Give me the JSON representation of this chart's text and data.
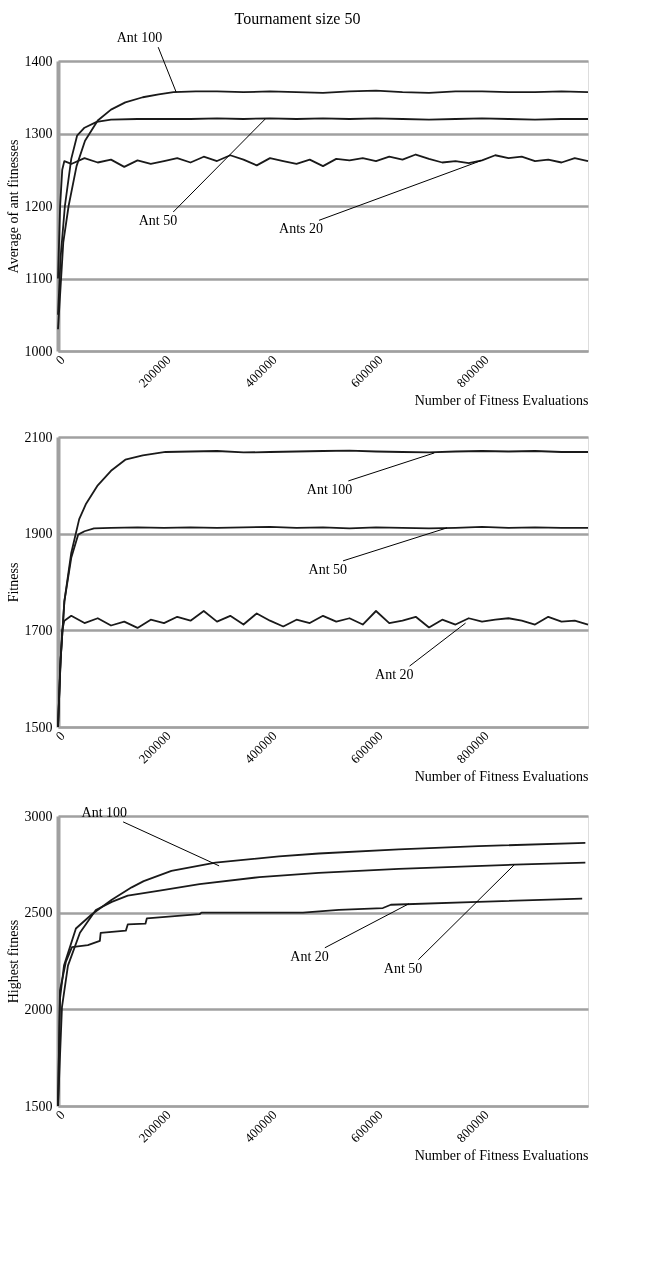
{
  "chart_data": [
    {
      "type": "line",
      "title": "Tournament size 50",
      "xlabel": "Number of Fitness Evaluations",
      "ylabel": "Average of ant fitnesses",
      "xlim": [
        0,
        1000000
      ],
      "xticks": [
        0,
        200000,
        400000,
        600000,
        800000
      ],
      "ylim": [
        1000,
        1400
      ],
      "yticks": [
        1000,
        1100,
        1200,
        1300,
        1400
      ],
      "grid": "y",
      "legend": false,
      "marker": "none",
      "line_style": "solid",
      "series": [
        {
          "color": "#1a1a1a",
          "x": [
            0,
            5000,
            10000,
            20000,
            35000,
            51000,
            75000,
            100000,
            127000,
            160000,
            190000,
            218000,
            260000,
            300000,
            350000,
            400000,
            450000,
            500000,
            550000,
            600000,
            650000,
            700000,
            750000,
            800000,
            850000,
            900000,
            950000,
            1000000
          ],
          "values": [
            1030,
            1090,
            1150,
            1200,
            1255,
            1290,
            1318,
            1333,
            1343,
            1350,
            1354,
            1357,
            1358,
            1358,
            1357,
            1358,
            1357,
            1356,
            1358,
            1359,
            1357,
            1356,
            1358,
            1358,
            1357,
            1357,
            1358,
            1357
          ]
        },
        {
          "color": "#1a1a1a",
          "x": [
            0,
            5000,
            13000,
            25000,
            36000,
            50000,
            73000,
            100000,
            150000,
            200000,
            250000,
            300000,
            350000,
            400000,
            450000,
            500000,
            550000,
            600000,
            650000,
            700000,
            750000,
            800000,
            850000,
            900000,
            950000,
            1000000
          ],
          "values": [
            1050,
            1130,
            1200,
            1265,
            1297,
            1308,
            1316,
            1319,
            1320,
            1320,
            1320,
            1321,
            1320,
            1321,
            1320,
            1321,
            1320,
            1321,
            1320,
            1319,
            1320,
            1321,
            1320,
            1319,
            1320,
            1320
          ]
        },
        {
          "color": "#1a1a1a",
          "x": [
            0,
            4000,
            8000,
            12000,
            25000,
            50000,
            75000,
            100000,
            125000,
            150000,
            175000,
            200000,
            225000,
            250000,
            275000,
            300000,
            325000,
            350000,
            375000,
            400000,
            425000,
            450000,
            475000,
            500000,
            525000,
            550000,
            575000,
            600000,
            625000,
            650000,
            675000,
            700000,
            725000,
            750000,
            775000,
            800000,
            825000,
            850000,
            875000,
            900000,
            925000,
            950000,
            975000,
            1000000
          ],
          "values": [
            1100,
            1200,
            1250,
            1262,
            1258,
            1266,
            1260,
            1264,
            1254,
            1263,
            1258,
            1262,
            1266,
            1260,
            1268,
            1262,
            1270,
            1264,
            1256,
            1266,
            1262,
            1258,
            1264,
            1255,
            1265,
            1263,
            1266,
            1262,
            1268,
            1264,
            1271,
            1265,
            1260,
            1262,
            1259,
            1263,
            1270,
            1266,
            1268,
            1262,
            1264,
            1260,
            1266,
            1262
          ]
        }
      ],
      "annotations": [
        {
          "text": "Ant 100",
          "x": 223000,
          "y": 1357
        },
        {
          "text": "Ant 50",
          "x": 391000,
          "y": 1320
        },
        {
          "text": "Ants 20",
          "x": 800000,
          "y": 1263
        }
      ]
    },
    {
      "type": "line",
      "xlabel": "Number of Fitness Evaluations",
      "ylabel": "Fitness",
      "xlim": [
        0,
        1000000
      ],
      "xticks": [
        0,
        200000,
        400000,
        600000,
        800000
      ],
      "ylim": [
        1500,
        2100
      ],
      "yticks": [
        1500,
        1700,
        1900,
        2100
      ],
      "grid": "y",
      "legend": false,
      "marker": "none",
      "line_style": "solid",
      "series": [
        {
          "color": "#1a1a1a",
          "x": [
            0,
            5000,
            12000,
            25000,
            40000,
            53000,
            75000,
            100000,
            127000,
            160000,
            203000,
            250000,
            300000,
            350000,
            400000,
            450000,
            500000,
            550000,
            600000,
            650000,
            700000,
            750000,
            800000,
            850000,
            900000,
            950000,
            1000000
          ],
          "values": [
            1500,
            1640,
            1760,
            1860,
            1930,
            1962,
            2000,
            2030,
            2053,
            2062,
            2069,
            2070,
            2071,
            2068,
            2069,
            2070,
            2071,
            2072,
            2070,
            2069,
            2068,
            2070,
            2071,
            2070,
            2071,
            2069,
            2069
          ]
        },
        {
          "color": "#1a1a1a",
          "x": [
            0,
            5000,
            12000,
            25000,
            38000,
            50000,
            68000,
            100000,
            150000,
            200000,
            250000,
            300000,
            350000,
            400000,
            450000,
            500000,
            550000,
            600000,
            650000,
            700000,
            750000,
            800000,
            850000,
            900000,
            950000,
            1000000
          ],
          "values": [
            1500,
            1640,
            1760,
            1850,
            1898,
            1905,
            1911,
            1912,
            1913,
            1912,
            1913,
            1912,
            1913,
            1914,
            1912,
            1913,
            1911,
            1913,
            1912,
            1911,
            1912,
            1914,
            1912,
            1913,
            1912,
            1912
          ]
        },
        {
          "color": "#1a1a1a",
          "x": [
            0,
            4000,
            8000,
            12000,
            25000,
            50000,
            75000,
            100000,
            125000,
            150000,
            175000,
            200000,
            225000,
            250000,
            275000,
            300000,
            325000,
            350000,
            375000,
            400000,
            425000,
            450000,
            475000,
            500000,
            525000,
            550000,
            575000,
            600000,
            625000,
            650000,
            675000,
            700000,
            725000,
            750000,
            775000,
            800000,
            825000,
            850000,
            875000,
            900000,
            925000,
            950000,
            975000,
            1000000
          ],
          "values": [
            1500,
            1620,
            1700,
            1720,
            1730,
            1715,
            1725,
            1710,
            1718,
            1705,
            1722,
            1715,
            1728,
            1720,
            1740,
            1718,
            1730,
            1712,
            1735,
            1720,
            1708,
            1722,
            1715,
            1730,
            1718,
            1725,
            1712,
            1740,
            1715,
            1720,
            1728,
            1706,
            1722,
            1712,
            1725,
            1718,
            1722,
            1725,
            1720,
            1712,
            1728,
            1718,
            1720,
            1712
          ]
        }
      ],
      "annotations": [
        {
          "text": "Ant 100",
          "x": 710000,
          "y": 2067
        },
        {
          "text": "Ant 50",
          "x": 734000,
          "y": 1912
        },
        {
          "text": "Ant 20",
          "x": 769000,
          "y": 1715
        }
      ]
    },
    {
      "type": "line",
      "xlabel": "Number of Fitness Evaluations",
      "ylabel": "Highest fitness",
      "xlim": [
        0,
        1000000
      ],
      "xticks": [
        0,
        200000,
        400000,
        600000,
        800000
      ],
      "ylim": [
        1500,
        3000
      ],
      "yticks": [
        1500,
        2000,
        2500,
        3000
      ],
      "grid": "y",
      "legend": false,
      "marker": "none",
      "line_style": "solid",
      "series": [
        {
          "color": "#1a1a1a",
          "x": [
            0,
            3760,
            11300,
            33800,
            64000,
            101500,
            139000,
            161700,
            214000,
            297000,
            417000,
            492000,
            643000,
            793000,
            995000
          ],
          "values": [
            1500,
            2055,
            2226,
            2418,
            2492,
            2567,
            2631,
            2663,
            2716,
            2759,
            2791,
            2806,
            2827,
            2844,
            2861
          ]
        },
        {
          "color": "#1a1a1a",
          "x": [
            0,
            7500,
            18800,
            41400,
            71400,
            101500,
            131600,
            191700,
            267000,
            380000,
            492000,
            643000,
            861000,
            995000
          ],
          "values": [
            1500,
            2012,
            2226,
            2396,
            2514,
            2556,
            2588,
            2614,
            2648,
            2684,
            2706,
            2727,
            2748,
            2759
          ]
        },
        {
          "color": "#1a1a1a",
          "x": [
            0,
            3760,
            15000,
            26300,
            56400,
            79000,
            80500,
            128000,
            131600,
            165000,
            167700,
            267000,
            270700,
            462000,
            530000,
            613000,
            628000,
            793000,
            989000
          ],
          "values": [
            1500,
            2098,
            2247,
            2322,
            2332,
            2354,
            2396,
            2407,
            2439,
            2443,
            2471,
            2492,
            2500,
            2500,
            2514,
            2524,
            2541,
            2556,
            2573
          ]
        }
      ],
      "annotations": [
        {
          "text": "Ant 100",
          "x": 304000,
          "y": 2742
        },
        {
          "text": "Ant 20",
          "x": 662000,
          "y": 2546
        },
        {
          "text": "Ant 50",
          "x": 861000,
          "y": 2748
        }
      ]
    }
  ]
}
